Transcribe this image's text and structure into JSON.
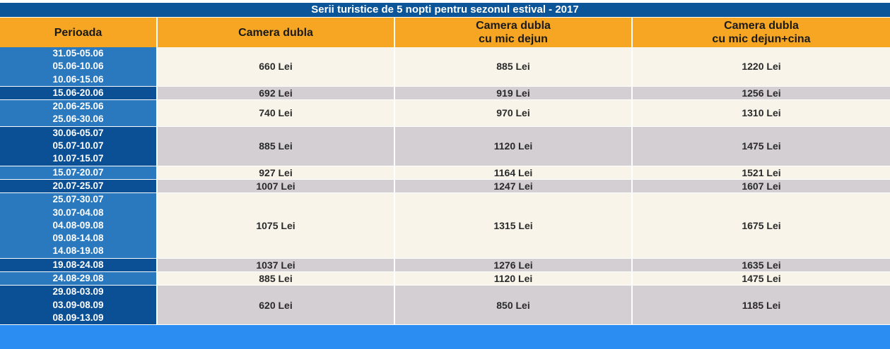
{
  "table": {
    "title": "Serii turistice de 5 nopti pentru sezonul estival - 2017",
    "headers": [
      [
        "Perioada"
      ],
      [
        "Camera dubla"
      ],
      [
        "Camera dubla",
        "cu mic dejun"
      ],
      [
        "Camera dubla",
        "cu mic dejun+cina"
      ]
    ],
    "rows": [
      {
        "periods": [
          "31.05-05.06",
          "05.06-10.06",
          "10.06-15.06"
        ],
        "values": [
          "660 Lei",
          "885 Lei",
          "1220 Lei"
        ]
      },
      {
        "periods": [
          "15.06-20.06"
        ],
        "values": [
          "692 Lei",
          "919 Lei",
          "1256 Lei"
        ]
      },
      {
        "periods": [
          "20.06-25.06",
          "25.06-30.06"
        ],
        "values": [
          "740 Lei",
          "970 Lei",
          "1310 Lei"
        ]
      },
      {
        "periods": [
          "30.06-05.07",
          "05.07-10.07",
          "10.07-15.07"
        ],
        "values": [
          "885 Lei",
          "1120 Lei",
          "1475 Lei"
        ]
      },
      {
        "periods": [
          "15.07-20.07"
        ],
        "values": [
          "927 Lei",
          "1164 Lei",
          "1521 Lei"
        ]
      },
      {
        "periods": [
          "20.07-25.07"
        ],
        "values": [
          "1007 Lei",
          "1247 Lei",
          "1607 Lei"
        ]
      },
      {
        "periods": [
          "25.07-30.07",
          "30.07-04.08",
          "04.08-09.08",
          "09.08-14.08",
          "14.08-19.08"
        ],
        "values": [
          "1075 Lei",
          "1315 Lei",
          "1675 Lei"
        ]
      },
      {
        "periods": [
          "19.08-24.08"
        ],
        "values": [
          "1037 Lei",
          "1276 Lei",
          "1635 Lei"
        ]
      },
      {
        "periods": [
          "24.08-29.08"
        ],
        "values": [
          "885 Lei",
          "1120 Lei",
          "1475 Lei"
        ]
      },
      {
        "periods": [
          "29.08-03.09",
          "03.09-08.09",
          "08.09-13.09"
        ],
        "values": [
          "620 Lei",
          "850 Lei",
          "1185 Lei"
        ]
      }
    ]
  }
}
